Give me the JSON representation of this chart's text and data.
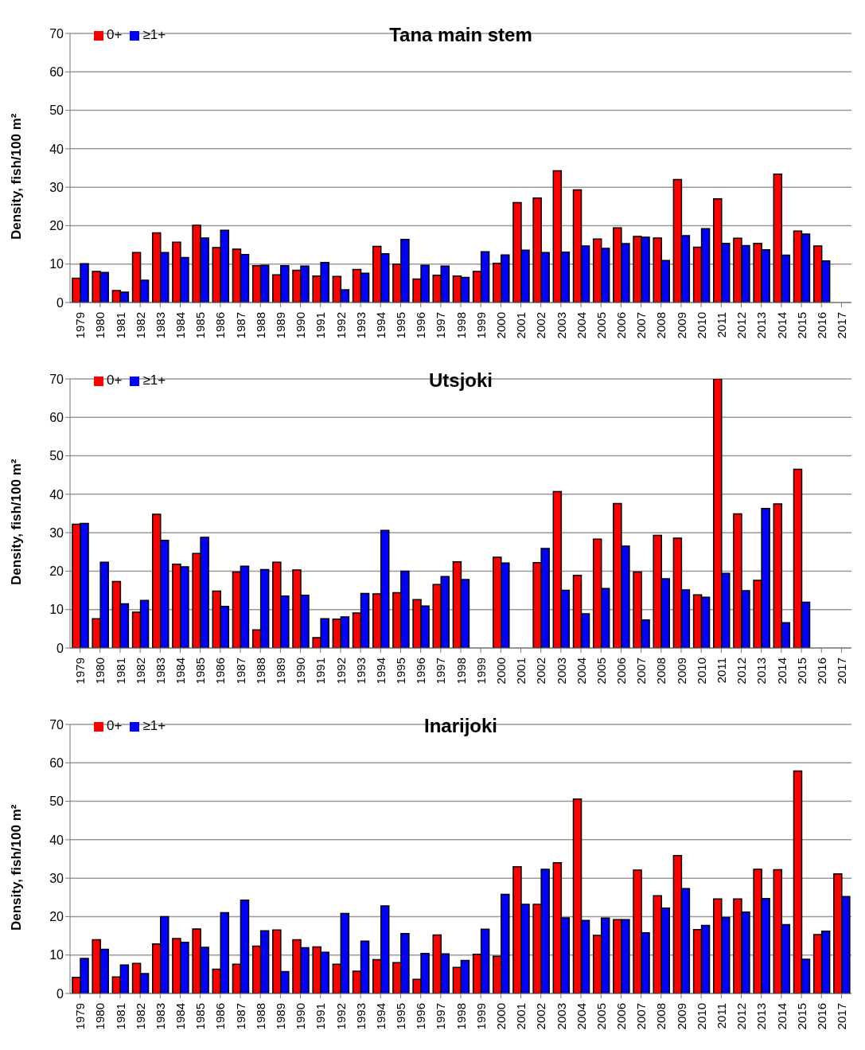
{
  "chart_data": [
    {
      "type": "bar",
      "title": "Tana main stem",
      "ylabel": "Density, fish/100 m²",
      "categories": [
        "1979",
        "1980",
        "1981",
        "1982",
        "1983",
        "1984",
        "1985",
        "1986",
        "1987",
        "1988",
        "1989",
        "1990",
        "1991",
        "1992",
        "1993",
        "1994",
        "1995",
        "1996",
        "1997",
        "1998",
        "1999",
        "2000",
        "2001",
        "2002",
        "2003",
        "2004",
        "2005",
        "2006",
        "2007",
        "2008",
        "2009",
        "2010",
        "2011",
        "2012",
        "2013",
        "2014",
        "2015",
        "2016",
        "2017"
      ],
      "ylim": [
        0,
        70
      ],
      "yticks": [
        0,
        10,
        20,
        30,
        40,
        50,
        60,
        70
      ],
      "grid": "y",
      "legend": "top left",
      "series": [
        {
          "name": "0+",
          "color": "#ff0000",
          "values": [
            6.3,
            8.1,
            3.1,
            13.0,
            18.1,
            15.7,
            20.1,
            14.3,
            13.9,
            9.6,
            7.2,
            8.4,
            6.9,
            6.8,
            8.6,
            14.6,
            10.0,
            6.1,
            7.1,
            6.9,
            8.1,
            10.2,
            26.0,
            27.2,
            34.3,
            29.3,
            16.5,
            19.4,
            17.2,
            16.8,
            32.0,
            14.4,
            27.0,
            16.7,
            15.4,
            33.4,
            18.6,
            14.7,
            null
          ]
        },
        {
          "name": "≥1+",
          "color": "#0000ff",
          "values": [
            10.1,
            7.8,
            2.7,
            5.8,
            13.0,
            11.7,
            16.8,
            18.8,
            12.5,
            9.7,
            9.6,
            9.5,
            10.4,
            3.3,
            7.6,
            12.7,
            16.4,
            9.7,
            9.5,
            6.5,
            13.2,
            12.4,
            13.6,
            13.0,
            13.1,
            14.7,
            14.1,
            15.3,
            17.0,
            10.9,
            17.4,
            19.2,
            15.4,
            14.8,
            13.7,
            12.3,
            17.8,
            10.8,
            null
          ]
        }
      ]
    },
    {
      "type": "bar",
      "title": "Utsjoki",
      "ylabel": "Density, fish/100 m²",
      "categories": [
        "1979",
        "1980",
        "1981",
        "1982",
        "1983",
        "1984",
        "1985",
        "1986",
        "1987",
        "1988",
        "1989",
        "1990",
        "1991",
        "1992",
        "1993",
        "1994",
        "1995",
        "1996",
        "1997",
        "1998",
        "1999",
        "2000",
        "2001",
        "2002",
        "2003",
        "2004",
        "2005",
        "2006",
        "2007",
        "2008",
        "2009",
        "2010",
        "2011",
        "2012",
        "2013",
        "2014",
        "2015",
        "2016",
        "2017"
      ],
      "ylim": [
        0,
        70
      ],
      "yticks": [
        0,
        10,
        20,
        30,
        40,
        50,
        60,
        70
      ],
      "grid": "y",
      "legend": "top left",
      "series": [
        {
          "name": "0+",
          "color": "#ff0000",
          "values": [
            32.2,
            7.6,
            17.3,
            9.3,
            34.8,
            21.8,
            24.6,
            14.8,
            19.8,
            4.7,
            22.3,
            20.3,
            2.7,
            7.5,
            9.1,
            14.1,
            14.4,
            12.6,
            16.5,
            22.4,
            null,
            23.6,
            null,
            22.2,
            40.7,
            18.9,
            28.3,
            37.6,
            19.8,
            29.3,
            28.6,
            13.8,
            70,
            34.9,
            17.6,
            37.5,
            46.5,
            null,
            null
          ]
        },
        {
          "name": "≥1+",
          "color": "#0000ff",
          "values": [
            32.4,
            22.3,
            11.5,
            12.4,
            28.0,
            21.1,
            28.8,
            10.8,
            21.3,
            20.4,
            13.5,
            13.7,
            7.6,
            8.1,
            14.2,
            30.6,
            20.0,
            10.9,
            18.6,
            17.8,
            null,
            22.1,
            null,
            25.9,
            15.0,
            8.9,
            15.5,
            26.5,
            7.3,
            18.0,
            15.1,
            13.2,
            19.4,
            14.9,
            36.3,
            6.6,
            11.9,
            null,
            null
          ]
        }
      ]
    },
    {
      "type": "bar",
      "title": "Inarijoki",
      "ylabel": "Density, fish/100 m²",
      "categories": [
        "1979",
        "1980",
        "1981",
        "1982",
        "1983",
        "1984",
        "1985",
        "1986",
        "1987",
        "1988",
        "1989",
        "1990",
        "1991",
        "1992",
        "1993",
        "1994",
        "1995",
        "1996",
        "1997",
        "1998",
        "1999",
        "2000",
        "2001",
        "2002",
        "2003",
        "2004",
        "2005",
        "2006",
        "2007",
        "2008",
        "2009",
        "2010",
        "2011",
        "2012",
        "2013",
        "2014",
        "2015",
        "2016",
        "2017"
      ],
      "ylim": [
        0,
        70
      ],
      "yticks": [
        0,
        10,
        20,
        30,
        40,
        50,
        60,
        70
      ],
      "grid": "y",
      "legend": "top left",
      "series": [
        {
          "name": "0+",
          "color": "#ff0000",
          "values": [
            4.2,
            14.0,
            4.3,
            7.8,
            12.9,
            14.3,
            16.8,
            6.3,
            7.6,
            12.3,
            16.5,
            14.0,
            12.1,
            7.6,
            5.8,
            8.8,
            8.0,
            3.7,
            15.2,
            6.8,
            10.2,
            9.7,
            33.0,
            23.2,
            34.0,
            50.6,
            15.1,
            19.2,
            32.1,
            25.4,
            35.9,
            16.6,
            24.6,
            24.6,
            32.3,
            32.2,
            57.9,
            15.3,
            31.1
          ]
        },
        {
          "name": "≥1+",
          "color": "#0000ff",
          "values": [
            9.1,
            11.5,
            7.4,
            5.2,
            20.0,
            13.3,
            12.0,
            21.0,
            24.3,
            16.3,
            5.7,
            11.9,
            10.7,
            20.8,
            13.6,
            22.8,
            15.6,
            10.4,
            10.3,
            8.6,
            16.7,
            25.8,
            23.2,
            32.3,
            19.7,
            19.0,
            19.6,
            19.2,
            15.8,
            22.2,
            27.3,
            17.7,
            19.8,
            21.2,
            24.7,
            17.9,
            8.9,
            16.2,
            25.2
          ]
        }
      ]
    }
  ]
}
